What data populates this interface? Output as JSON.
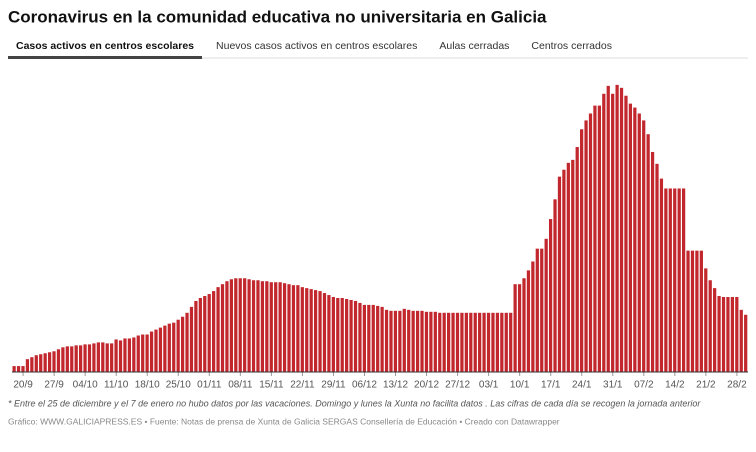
{
  "tabs": [
    "Casos activos en centros escolares",
    "Nuevos casos activos en centros escolares",
    "Aulas cerradas",
    "Centros cerrados"
  ],
  "active_tab": 0,
  "chart_data": {
    "type": "bar",
    "title": "Coronavirus en la comunidad educativa no universitaria en Galicia",
    "categories": [
      null,
      null,
      "20/9",
      null,
      null,
      null,
      null,
      null,
      null,
      "27/9",
      null,
      null,
      null,
      null,
      null,
      null,
      "04/10",
      null,
      null,
      null,
      null,
      null,
      null,
      "11/10",
      null,
      null,
      null,
      null,
      null,
      null,
      "18/10",
      null,
      null,
      null,
      null,
      null,
      null,
      "25/10",
      null,
      null,
      null,
      null,
      null,
      null,
      "01/11",
      null,
      null,
      null,
      null,
      null,
      null,
      "08/11",
      null,
      null,
      null,
      null,
      null,
      null,
      "15/11",
      null,
      null,
      null,
      null,
      null,
      null,
      "22/11",
      null,
      null,
      null,
      null,
      null,
      null,
      "29/11",
      null,
      null,
      null,
      null,
      null,
      null,
      "06/12",
      null,
      null,
      null,
      null,
      null,
      null,
      "13/12",
      null,
      null,
      null,
      null,
      null,
      null,
      "20/12",
      null,
      null,
      null,
      null,
      null,
      null,
      "27/12",
      null,
      null,
      null,
      null,
      null,
      null,
      "03/1",
      null,
      null,
      null,
      null,
      null,
      null,
      "10/1",
      null,
      null,
      null,
      null,
      null,
      null,
      "17/1",
      null,
      null,
      null,
      null,
      null,
      null,
      "24/1",
      null,
      null,
      null,
      null,
      null,
      null,
      "31/1",
      null,
      null,
      null,
      null,
      null,
      null,
      "07/2",
      null,
      null,
      null,
      null,
      null,
      null,
      "14/2",
      null,
      null,
      null,
      null,
      null,
      null,
      "21/2",
      null,
      null,
      null,
      null,
      null,
      null,
      "28/2",
      null,
      null
    ],
    "values": [
      6,
      6,
      6,
      13,
      15,
      17,
      18,
      19,
      20,
      21,
      23,
      25,
      26,
      26,
      27,
      27,
      28,
      28,
      29,
      30,
      30,
      29,
      29,
      33,
      32,
      34,
      34,
      35,
      37,
      38,
      38,
      41,
      43,
      45,
      47,
      49,
      50,
      53,
      56,
      60,
      66,
      72,
      75,
      77,
      79,
      82,
      86,
      89,
      92,
      94,
      95,
      95,
      95,
      94,
      93,
      93,
      92,
      92,
      91,
      91,
      91,
      90,
      89,
      88,
      88,
      86,
      85,
      84,
      83,
      82,
      80,
      78,
      76,
      75,
      75,
      74,
      73,
      72,
      70,
      68,
      68,
      68,
      67,
      66,
      63,
      62,
      62,
      62,
      64,
      63,
      62,
      62,
      62,
      61,
      61,
      61,
      60,
      60,
      60,
      60,
      60,
      60,
      60,
      60,
      60,
      60,
      60,
      60,
      60,
      60,
      60,
      60,
      60,
      89,
      89,
      95,
      103,
      112,
      125,
      125,
      135,
      155,
      175,
      198,
      205,
      212,
      215,
      228,
      246,
      255,
      262,
      270,
      270,
      282,
      290,
      282,
      291,
      288,
      280,
      272,
      268,
      262,
      255,
      241,
      223,
      211,
      196,
      186,
      186,
      186,
      186,
      186,
      123,
      123,
      123,
      123,
      105,
      93,
      85,
      77,
      76,
      76,
      76,
      76,
      63,
      58
    ],
    "color": "#c1272d",
    "ylim": [
      0,
      300
    ]
  },
  "note": "* Entre el 25 de diciembre y el 7 de enero no hubo datos por las vacaciones. Domingo y lunes la Xunta no facilita datos . Las cifras de cada día se recogen la jornada anterior",
  "credits": "Gráfico: WWW.GALICIAPRESS.ES • Fuente: Notas de prensa de Xunta de Galicia SERGAS Consellería de Educación • Creado con Datawrapper"
}
